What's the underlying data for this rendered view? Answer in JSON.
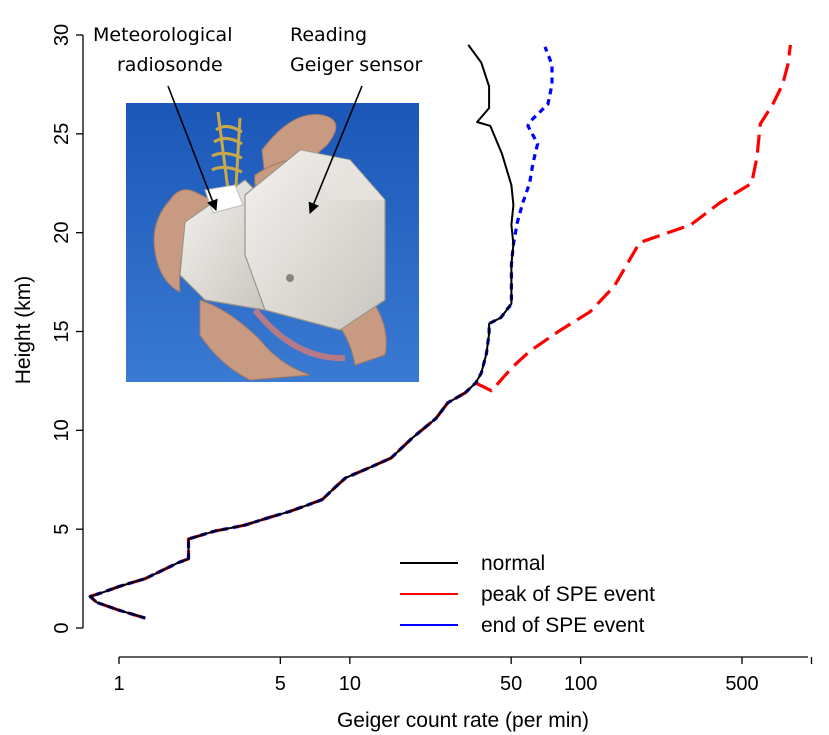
{
  "chart_data": {
    "type": "line",
    "title": "",
    "xlabel": "Geiger count rate (per min)",
    "ylabel": "Height (km)",
    "x_scale": "log",
    "xlim": [
      0.8,
      1000
    ],
    "ylim": [
      -1,
      31
    ],
    "x_ticks": [
      1,
      5,
      10,
      50,
      100,
      500
    ],
    "x_tick_labels": [
      "1",
      "5",
      "10",
      "50",
      "100",
      "500"
    ],
    "y_ticks": [
      0,
      5,
      10,
      15,
      20,
      25,
      30
    ],
    "y_tick_labels": [
      "0",
      "5",
      "10",
      "15",
      "20",
      "25",
      "30"
    ],
    "legend_position": "bottom-right",
    "series": [
      {
        "name": "normal",
        "color": "#000000",
        "style": "solid",
        "points": [
          [
            1.3,
            0.5
          ],
          [
            1.0,
            0.9
          ],
          [
            0.8,
            1.3
          ],
          [
            0.75,
            1.6
          ],
          [
            0.85,
            1.8
          ],
          [
            1.0,
            2.1
          ],
          [
            1.3,
            2.5
          ],
          [
            1.8,
            3.3
          ],
          [
            2.0,
            3.5
          ],
          [
            2.0,
            4.5
          ],
          [
            2.6,
            4.9
          ],
          [
            3.5,
            5.2
          ],
          [
            4.5,
            5.6
          ],
          [
            5.5,
            5.9
          ],
          [
            6.5,
            6.2
          ],
          [
            7.6,
            6.5
          ],
          [
            8.6,
            7.1
          ],
          [
            9.6,
            7.6
          ],
          [
            12.1,
            8.1
          ],
          [
            15.1,
            8.6
          ],
          [
            18.6,
            9.6
          ],
          [
            23.6,
            10.6
          ],
          [
            26.6,
            11.4
          ],
          [
            31.6,
            11.9
          ],
          [
            35.1,
            12.4
          ],
          [
            37.1,
            12.9
          ],
          [
            39.1,
            13.9
          ],
          [
            40.1,
            14.9
          ],
          [
            40.1,
            15.4
          ],
          [
            45.1,
            15.7
          ],
          [
            50.1,
            16.4
          ],
          [
            50.1,
            17.4
          ],
          [
            50.1,
            18.4
          ],
          [
            51.1,
            19.4
          ],
          [
            50.1,
            20.4
          ],
          [
            51.1,
            21.4
          ],
          [
            50.1,
            22.4
          ],
          [
            45.6,
            24.0
          ],
          [
            40.6,
            25.4
          ],
          [
            35.6,
            25.6
          ],
          [
            40.1,
            26.3
          ],
          [
            40.1,
            27.4
          ],
          [
            37.1,
            28.6
          ],
          [
            32.6,
            29.5
          ]
        ]
      },
      {
        "name": "peak of SPE event",
        "color": "#ff0000",
        "style": "dashed",
        "points": [
          [
            1.3,
            0.5
          ],
          [
            1.0,
            0.9
          ],
          [
            0.8,
            1.3
          ],
          [
            0.75,
            1.6
          ],
          [
            0.85,
            1.8
          ],
          [
            1.0,
            2.1
          ],
          [
            1.3,
            2.5
          ],
          [
            1.8,
            3.3
          ],
          [
            2.0,
            3.5
          ],
          [
            2.0,
            4.5
          ],
          [
            2.6,
            4.9
          ],
          [
            3.5,
            5.2
          ],
          [
            4.5,
            5.6
          ],
          [
            5.5,
            5.9
          ],
          [
            6.5,
            6.2
          ],
          [
            7.6,
            6.5
          ],
          [
            8.6,
            7.1
          ],
          [
            9.6,
            7.6
          ],
          [
            12.1,
            8.1
          ],
          [
            15.1,
            8.6
          ],
          [
            18.6,
            9.6
          ],
          [
            23.6,
            10.6
          ],
          [
            26.6,
            11.4
          ],
          [
            31.6,
            11.9
          ],
          [
            35.1,
            12.4
          ],
          [
            41.1,
            12.0
          ],
          [
            50.6,
            13.2
          ],
          [
            60.1,
            14.0
          ],
          [
            80.1,
            15.0
          ],
          [
            110,
            16.0
          ],
          [
            140,
            17.3
          ],
          [
            180,
            19.5
          ],
          [
            300,
            20.4
          ],
          [
            400,
            21.5
          ],
          [
            550,
            22.5
          ],
          [
            580,
            23.8
          ],
          [
            600,
            25.5
          ],
          [
            680,
            26.5
          ],
          [
            750,
            27.5
          ],
          [
            790,
            28.5
          ],
          [
            810,
            29.5
          ]
        ]
      },
      {
        "name": "end of SPE event",
        "color": "#0000ff",
        "style": "dotted",
        "points": [
          [
            1.3,
            0.5
          ],
          [
            1.0,
            0.9
          ],
          [
            0.8,
            1.3
          ],
          [
            0.75,
            1.6
          ],
          [
            0.85,
            1.8
          ],
          [
            1.0,
            2.1
          ],
          [
            1.3,
            2.5
          ],
          [
            1.8,
            3.3
          ],
          [
            2.0,
            3.5
          ],
          [
            2.0,
            4.5
          ],
          [
            2.6,
            4.9
          ],
          [
            3.5,
            5.2
          ],
          [
            4.5,
            5.6
          ],
          [
            5.5,
            5.9
          ],
          [
            6.5,
            6.2
          ],
          [
            7.6,
            6.5
          ],
          [
            8.6,
            7.1
          ],
          [
            9.6,
            7.6
          ],
          [
            12.1,
            8.1
          ],
          [
            15.1,
            8.6
          ],
          [
            18.6,
            9.6
          ],
          [
            23.6,
            10.6
          ],
          [
            26.6,
            11.4
          ],
          [
            31.6,
            11.9
          ],
          [
            35.1,
            12.4
          ],
          [
            37.1,
            12.9
          ],
          [
            39.1,
            13.9
          ],
          [
            40.1,
            14.9
          ],
          [
            40.1,
            15.4
          ],
          [
            45.1,
            15.7
          ],
          [
            50.1,
            16.4
          ],
          [
            50.1,
            17.4
          ],
          [
            50.1,
            18.4
          ],
          [
            51.1,
            19.4
          ],
          [
            53.1,
            20.5
          ],
          [
            56.1,
            21.5
          ],
          [
            60.1,
            22.5
          ],
          [
            62.1,
            23.5
          ],
          [
            65.1,
            24.5
          ],
          [
            59.1,
            25.4
          ],
          [
            60.1,
            25.6
          ],
          [
            72.1,
            26.5
          ],
          [
            75.1,
            27.5
          ],
          [
            75.1,
            28.5
          ],
          [
            70.1,
            29.4
          ]
        ]
      }
    ],
    "inset": {
      "content": "photo of meteorological radiosonde with Geiger sensor held in hands against blue sky",
      "annotations": [
        {
          "lines": [
            "Meteorological",
            "radiosonde"
          ]
        },
        {
          "lines": [
            "Reading",
            "Geiger sensor"
          ]
        }
      ]
    }
  }
}
